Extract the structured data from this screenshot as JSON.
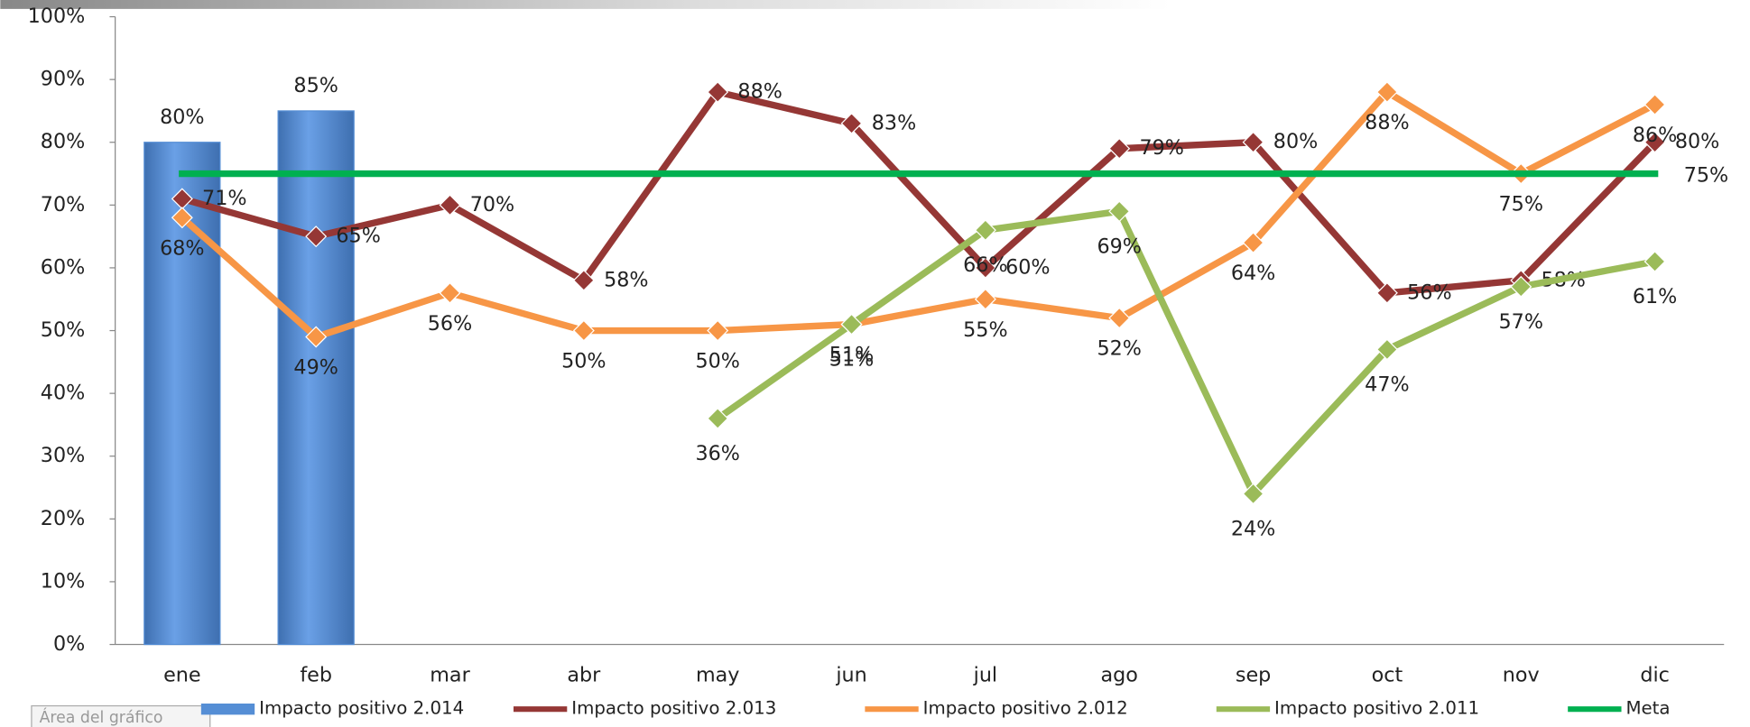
{
  "chart_data": {
    "type": "bar_line",
    "categories": [
      "ene",
      "feb",
      "mar",
      "abr",
      "may",
      "jun",
      "jul",
      "ago",
      "sep",
      "oct",
      "nov",
      "dic"
    ],
    "series": [
      {
        "name": "Impacto positivo 2.014",
        "kind": "bar",
        "color": "#558ed5",
        "values": [
          80,
          85,
          null,
          null,
          null,
          null,
          null,
          null,
          null,
          null,
          null,
          null
        ],
        "value_labels": [
          "80%",
          "85%",
          null,
          null,
          null,
          null,
          null,
          null,
          null,
          null,
          null,
          null
        ]
      },
      {
        "name": "Impacto positivo 2.013",
        "kind": "line",
        "color": "#953735",
        "values": [
          71,
          65,
          70,
          58,
          88,
          83,
          60,
          79,
          80,
          56,
          58,
          80
        ],
        "value_labels": [
          "71%",
          "65%",
          "70%",
          "58%",
          "88%",
          "83%",
          "60%",
          "79%",
          "80%",
          "56%",
          "58%",
          "80%"
        ]
      },
      {
        "name": "Impacto positivo 2.012",
        "kind": "line",
        "color": "#f79646",
        "values": [
          68,
          49,
          56,
          50,
          50,
          51,
          55,
          52,
          64,
          88,
          75,
          86
        ],
        "value_labels": [
          "68%",
          "49%",
          "56%",
          "50%",
          "50%",
          "51%",
          "55%",
          "52%",
          "64%",
          "88%",
          "75%",
          "86%"
        ]
      },
      {
        "name": "Impacto positivo 2.011",
        "kind": "line",
        "color": "#9bbb59",
        "values": [
          null,
          null,
          null,
          null,
          36,
          51,
          66,
          69,
          24,
          47,
          57,
          61
        ],
        "value_labels": [
          null,
          null,
          null,
          null,
          "36%",
          "51%",
          "66%",
          "69%",
          "24%",
          "47%",
          "57%",
          "61%"
        ]
      },
      {
        "name": "Meta",
        "kind": "meta",
        "color": "#00b050",
        "values": [
          75,
          75,
          75,
          75,
          75,
          75,
          75,
          75,
          75,
          75,
          75,
          75
        ],
        "value_labels": [
          null,
          null,
          null,
          null,
          null,
          null,
          null,
          null,
          null,
          null,
          null,
          "75%"
        ]
      }
    ],
    "ylim": [
      0,
      100
    ],
    "yticks": [
      {
        "value": 0,
        "label": "0%"
      },
      {
        "value": 10,
        "label": "10%"
      },
      {
        "value": 20,
        "label": "20%"
      },
      {
        "value": 30,
        "label": "30%"
      },
      {
        "value": 40,
        "label": "40%"
      },
      {
        "value": 50,
        "label": "50%"
      },
      {
        "value": 60,
        "label": "60%"
      },
      {
        "value": 70,
        "label": "70%"
      },
      {
        "value": 80,
        "label": "80%"
      },
      {
        "value": 90,
        "label": "90%"
      },
      {
        "value": 100,
        "label": "100%"
      }
    ],
    "tooltip": "Área del gráfico"
  }
}
